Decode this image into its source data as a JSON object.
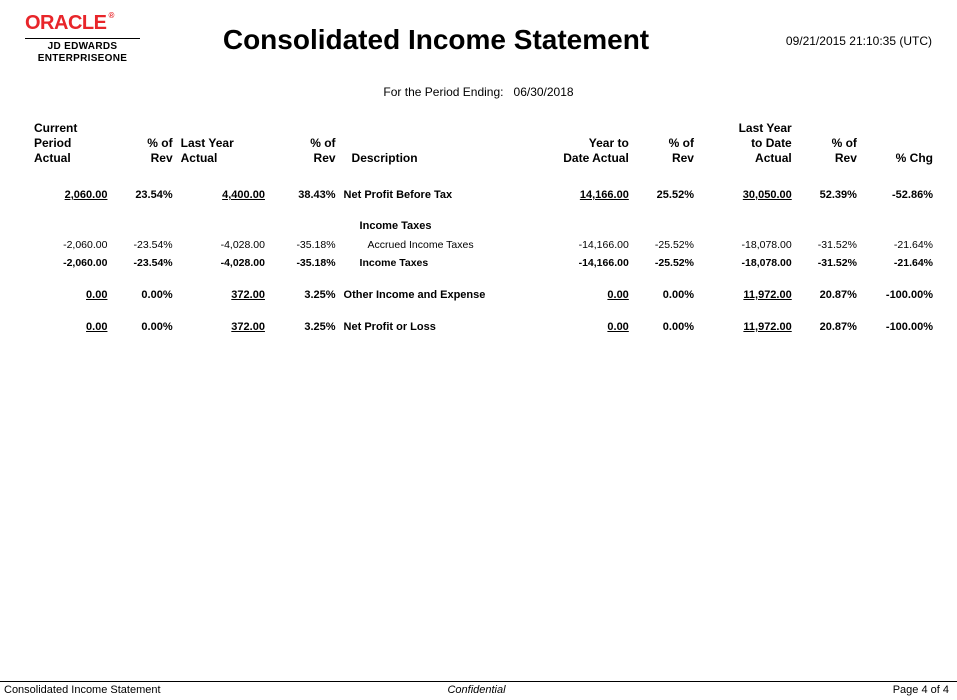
{
  "logo": {
    "brand": "ORACLE",
    "reg": "®",
    "line1": "JD EDWARDS",
    "line2": "ENTERPRISEONE"
  },
  "report": {
    "title": "Consolidated Income Statement",
    "timestamp": "09/21/2015 21:10:35 (UTC)",
    "period_label": "For the Period Ending:",
    "period_value": "06/30/2018"
  },
  "columns": {
    "c1": "Current\nPeriod\nActual",
    "c2": "% of\nRev",
    "c3": "Last Year\nActual",
    "c4": "% of\nRev",
    "c5": "Description",
    "c6": "Year to\nDate Actual",
    "c7": "% of\nRev",
    "c8": "Last Year\nto Date\nActual",
    "c9": "% of\nRev",
    "c10": "% Chg"
  },
  "rows": {
    "npbt": {
      "c1": "2,060.00",
      "c2": "23.54%",
      "c3": "4,400.00",
      "c4": "38.43%",
      "desc": "Net Profit Before Tax",
      "c6": "14,166.00",
      "c7": "25.52%",
      "c8": "30,050.00",
      "c9": "52.39%",
      "c10": "-52.86%"
    },
    "taxes_head": "Income Taxes",
    "accrued": {
      "c1": "-2,060.00",
      "c2": "-23.54%",
      "c3": "-4,028.00",
      "c4": "-35.18%",
      "desc": "Accrued Income Taxes",
      "c6": "-14,166.00",
      "c7": "-25.52%",
      "c8": "-18,078.00",
      "c9": "-31.52%",
      "c10": "-21.64%"
    },
    "taxes_total": {
      "c1": "-2,060.00",
      "c2": "-23.54%",
      "c3": "-4,028.00",
      "c4": "-35.18%",
      "desc": "Income Taxes",
      "c6": "-14,166.00",
      "c7": "-25.52%",
      "c8": "-18,078.00",
      "c9": "-31.52%",
      "c10": "-21.64%"
    },
    "other": {
      "c1": "0.00",
      "c2": "0.00%",
      "c3": "372.00",
      "c4": "3.25%",
      "desc": "Other Income and Expense",
      "c6": "0.00",
      "c7": "0.00%",
      "c8": "11,972.00",
      "c9": "20.87%",
      "c10": "-100.00%"
    },
    "net": {
      "c1": "0.00",
      "c2": "0.00%",
      "c3": "372.00",
      "c4": "3.25%",
      "desc": "Net Profit or Loss",
      "c6": "0.00",
      "c7": "0.00%",
      "c8": "11,972.00",
      "c9": "20.87%",
      "c10": "-100.00%"
    }
  },
  "footer": {
    "left": "Consolidated Income Statement",
    "center": "Confidential",
    "right": "Page 4 of 4"
  }
}
